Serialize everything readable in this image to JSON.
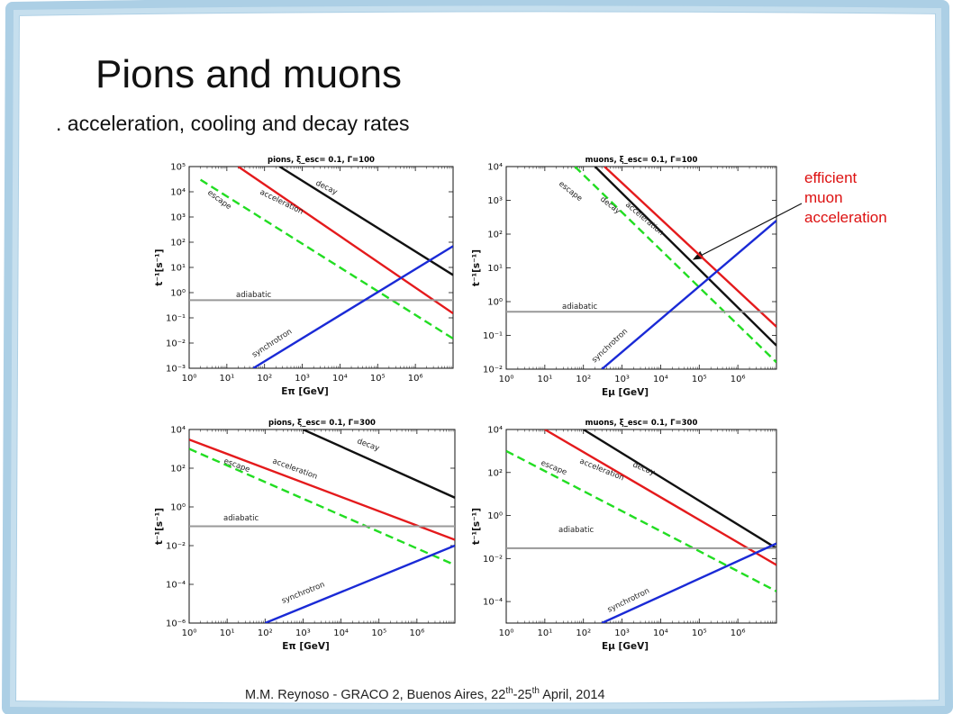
{
  "slide": {
    "title": "Pions and muons",
    "subtitle": ". acceleration, cooling and decay rates",
    "annotation_lines": [
      "efficient",
      "muon",
      "acceleration"
    ],
    "footer_prefix": "M.M. Reynoso - GRACO 2, Buenos Aires, 22",
    "footer_sup1": "th",
    "footer_mid": "-25",
    "footer_sup2": "th",
    "footer_suffix": " April, 2014"
  },
  "colors": {
    "acceleration": "#e41a1c",
    "decay": "#111111",
    "escape": "#22dd22",
    "synchrotron": "#1a2ad6",
    "adiabatic": "#999999",
    "annotation": "#dd1111"
  },
  "chart_data": [
    {
      "type": "line",
      "title": "pions, ξ_esc= 0.1, Γ=100",
      "xlabel": "E_π [GeV]",
      "ylabel": "t⁻¹[s⁻¹]",
      "xscale": "log",
      "yscale": "log",
      "xlim": [
        0.1,
        1000000.0
      ],
      "ylim": [
        0.001,
        100000.0
      ],
      "xticks": [
        "10⁰",
        "10¹",
        "10²",
        "10³",
        "10⁴",
        "10⁵",
        "10⁶"
      ],
      "yticks": [
        "10⁻³",
        "10⁻²",
        "10⁻¹",
        "10⁰",
        "10¹",
        "10²",
        "10³",
        "10⁴",
        "10⁵"
      ],
      "series": [
        {
          "name": "decay",
          "x": [
            25,
            1000000.0
          ],
          "y": [
            100000.0,
            5
          ]
        },
        {
          "name": "acceleration",
          "x": [
            2,
            1000000.0
          ],
          "y": [
            100000.0,
            0.15
          ]
        },
        {
          "name": "escape",
          "x": [
            0.2,
            1000000.0
          ],
          "y": [
            30000.0,
            0.015
          ]
        },
        {
          "name": "adiabatic",
          "x": [
            0.1,
            1000000.0
          ],
          "y": [
            0.5,
            0.5
          ]
        },
        {
          "name": "synchrotron",
          "x": [
            5,
            1000000.0
          ],
          "y": [
            0.001,
            70
          ]
        }
      ]
    },
    {
      "type": "line",
      "title": "muons, ξ_esc= 0.1, Γ=100",
      "xlabel": "E_μ [GeV]",
      "ylabel": "t⁻¹[s⁻¹]",
      "xscale": "log",
      "yscale": "log",
      "xlim": [
        0.1,
        1000000.0
      ],
      "ylim": [
        0.01,
        10000.0
      ],
      "xticks": [
        "10⁰",
        "10¹",
        "10²",
        "10³",
        "10⁴",
        "10⁵",
        "10⁶"
      ],
      "yticks": [
        "10⁻²",
        "10⁻¹",
        "10⁰",
        "10¹",
        "10²",
        "10³",
        "10⁴"
      ],
      "series": [
        {
          "name": "decay",
          "x": [
            20,
            1000000.0
          ],
          "y": [
            10000.0,
            0.05
          ]
        },
        {
          "name": "acceleration",
          "x": [
            35,
            1000000.0
          ],
          "y": [
            10000.0,
            0.18
          ]
        },
        {
          "name": "escape",
          "x": [
            6,
            1000000.0
          ],
          "y": [
            10000.0,
            0.016
          ]
        },
        {
          "name": "adiabatic",
          "x": [
            0.1,
            1000000.0
          ],
          "y": [
            0.5,
            0.5
          ]
        },
        {
          "name": "synchrotron",
          "x": [
            30,
            1000000.0
          ],
          "y": [
            0.01,
            250
          ]
        }
      ]
    },
    {
      "type": "line",
      "title": "pions, ξ_esc= 0.1, Γ=300",
      "xlabel": "E_π [GeV]",
      "ylabel": "t⁻¹[s⁻¹]",
      "xscale": "log",
      "yscale": "log",
      "xlim": [
        0.1,
        1000000.0
      ],
      "ylim": [
        1e-06,
        10000.0
      ],
      "xticks": [
        "10⁰",
        "10¹",
        "10²",
        "10³",
        "10⁴",
        "10⁵",
        "10⁶"
      ],
      "yticks": [
        "10⁻⁶",
        "10⁻⁴",
        "10⁻²",
        "10⁰",
        "10²",
        "10⁴"
      ],
      "series": [
        {
          "name": "decay",
          "x": [
            100,
            1000000.0
          ],
          "y": [
            10000.0,
            3
          ]
        },
        {
          "name": "acceleration",
          "x": [
            0.1,
            1000000.0
          ],
          "y": [
            3000,
            0.02
          ]
        },
        {
          "name": "escape",
          "x": [
            0.1,
            1000000.0
          ],
          "y": [
            1000,
            0.001
          ]
        },
        {
          "name": "adiabatic",
          "x": [
            0.1,
            1000000.0
          ],
          "y": [
            0.1,
            0.1
          ]
        },
        {
          "name": "synchrotron",
          "x": [
            10,
            1000000.0
          ],
          "y": [
            1e-06,
            0.01
          ]
        }
      ]
    },
    {
      "type": "line",
      "title": "muons, ξ_esc= 0.1, Γ=300",
      "xlabel": "E_μ [GeV]",
      "ylabel": "t⁻¹[s⁻¹]",
      "xscale": "log",
      "yscale": "log",
      "xlim": [
        0.1,
        1000000.0
      ],
      "ylim": [
        1e-05,
        10000.0
      ],
      "xticks": [
        "10⁰",
        "10¹",
        "10²",
        "10³",
        "10⁴",
        "10⁵",
        "10⁶"
      ],
      "yticks": [
        "10⁻⁴",
        "10⁻²",
        "10⁰",
        "10²",
        "10⁴"
      ],
      "series": [
        {
          "name": "decay",
          "x": [
            10,
            1000000.0
          ],
          "y": [
            10000.0,
            0.03
          ]
        },
        {
          "name": "acceleration",
          "x": [
            1,
            1000000.0
          ],
          "y": [
            10000.0,
            0.005
          ]
        },
        {
          "name": "escape",
          "x": [
            0.1,
            1000000.0
          ],
          "y": [
            1000,
            0.0003
          ]
        },
        {
          "name": "adiabatic",
          "x": [
            0.1,
            1000000.0
          ],
          "y": [
            0.03,
            0.03
          ]
        },
        {
          "name": "synchrotron",
          "x": [
            30,
            1000000.0
          ],
          "y": [
            1e-05,
            0.05
          ]
        }
      ]
    }
  ]
}
